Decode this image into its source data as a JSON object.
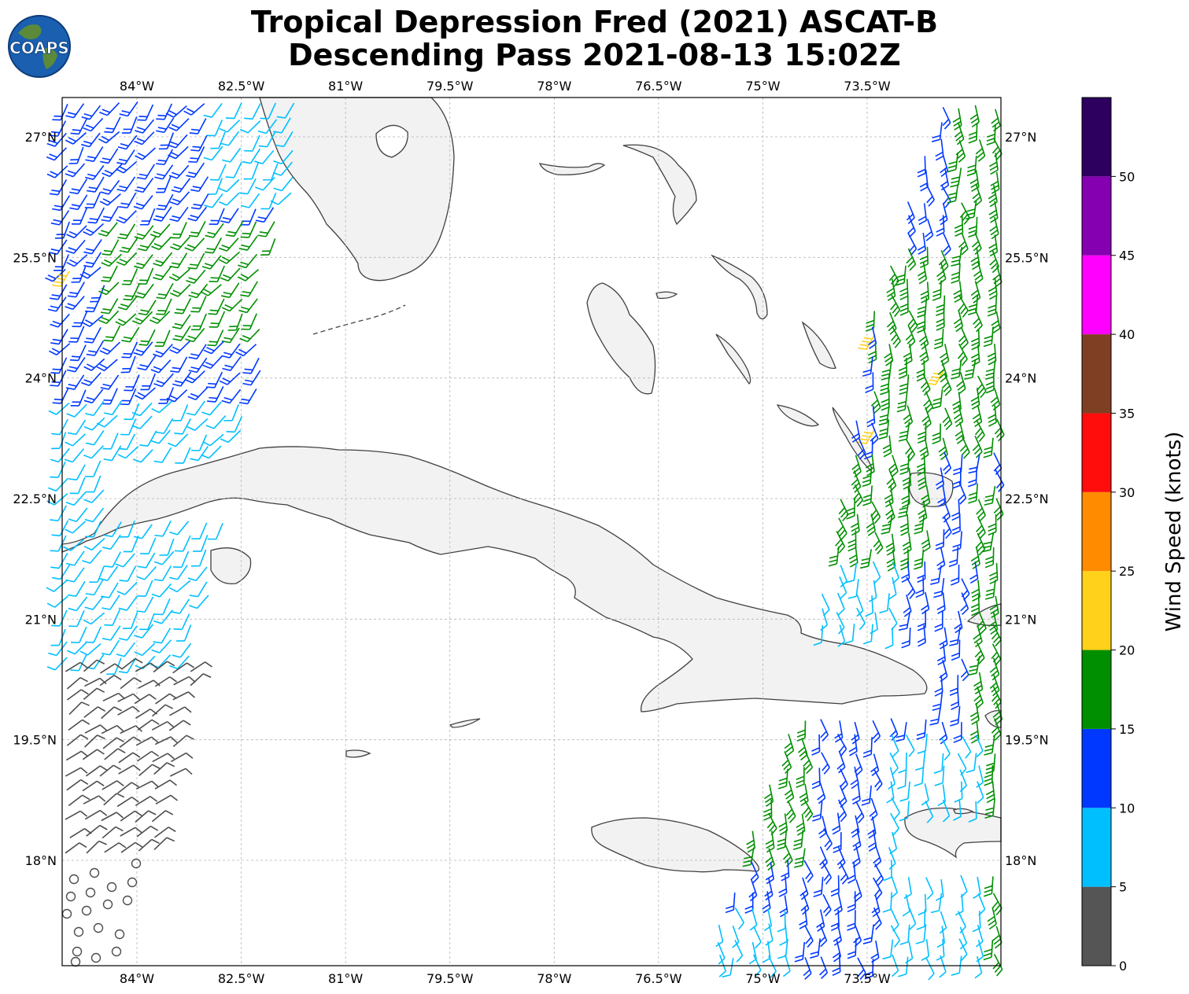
{
  "title": {
    "line1": "Tropical Depression Fred (2021) ASCAT-B",
    "line2": "Descending Pass 2021-08-13 15:02Z"
  },
  "logo_text": "COAPS",
  "map": {
    "lon_range": [
      -85.0,
      -72.5
    ],
    "lat_range": [
      16.6,
      27.5
    ],
    "lon_ticks": [
      "84°W",
      "82.5°W",
      "81°W",
      "79.5°W",
      "78°W",
      "76.5°W",
      "75°W",
      "73.5°W"
    ],
    "lat_ticks": [
      "27°N",
      "25.5°N",
      "24°N",
      "22.5°N",
      "21°N",
      "19.5°N",
      "18°N"
    ],
    "gridlines": true,
    "regions_shown": [
      "Florida",
      "Bahamas",
      "Cuba",
      "Jamaica",
      "Haiti"
    ]
  },
  "colorbar": {
    "label": "Wind Speed (knots)",
    "ticks": [
      "0",
      "5",
      "10",
      "15",
      "20",
      "25",
      "30",
      "35",
      "40",
      "45",
      "50"
    ],
    "bins": [
      {
        "from": 0,
        "to": 5,
        "color": "#555555"
      },
      {
        "from": 5,
        "to": 10,
        "color": "#00bfff"
      },
      {
        "from": 10,
        "to": 15,
        "color": "#0038ff"
      },
      {
        "from": 15,
        "to": 20,
        "color": "#008f00"
      },
      {
        "from": 20,
        "to": 25,
        "color": "#ffd11a"
      },
      {
        "from": 25,
        "to": 30,
        "color": "#ff8c00"
      },
      {
        "from": 30,
        "to": 35,
        "color": "#ff0d0d"
      },
      {
        "from": 35,
        "to": 40,
        "color": "#7f3f23"
      },
      {
        "from": 40,
        "to": 45,
        "color": "#ff00ff"
      },
      {
        "from": 45,
        "to": 50,
        "color": "#8400b0"
      },
      {
        "from": 50,
        "to": 55,
        "color": "#2d0060"
      }
    ]
  }
}
